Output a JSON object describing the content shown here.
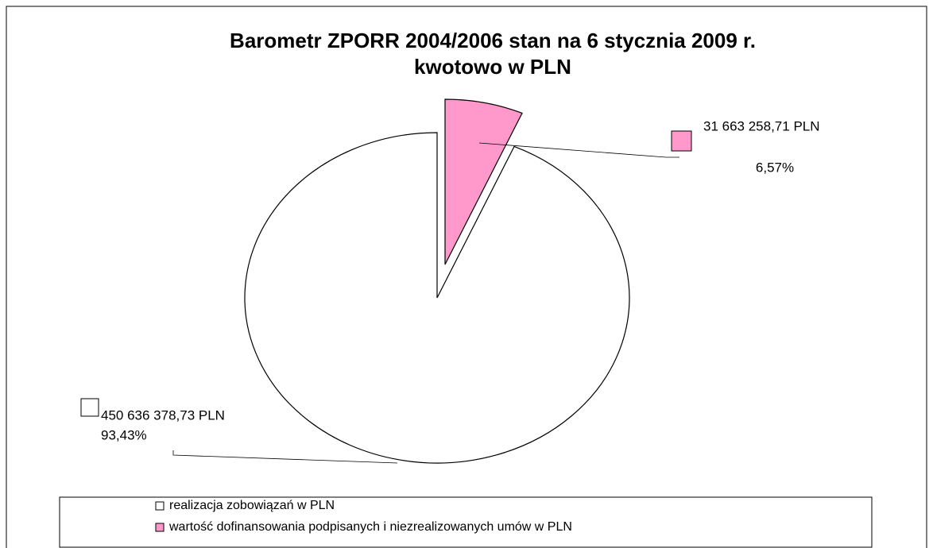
{
  "chart_data": {
    "type": "pie",
    "title": [
      "Barometr ZPORR 2004/2006 stan na 6 stycznia 2009 r.",
      "kwotowo w PLN"
    ],
    "categories": [
      "realizacja zobowiązań w PLN",
      "wartość dofinansowania podpisanych i niezrealizowanych umów w PLN"
    ],
    "values": [
      450636378.73,
      31663258.71
    ],
    "value_labels": [
      "450 636 378,73 PLN",
      "31 663 258,71 PLN"
    ],
    "percents": [
      93.43,
      6.57
    ],
    "percent_labels": [
      "93,43%",
      "6,57%"
    ],
    "colors": [
      "#ffffff",
      "#ff99cc"
    ],
    "legend": "bottom"
  }
}
